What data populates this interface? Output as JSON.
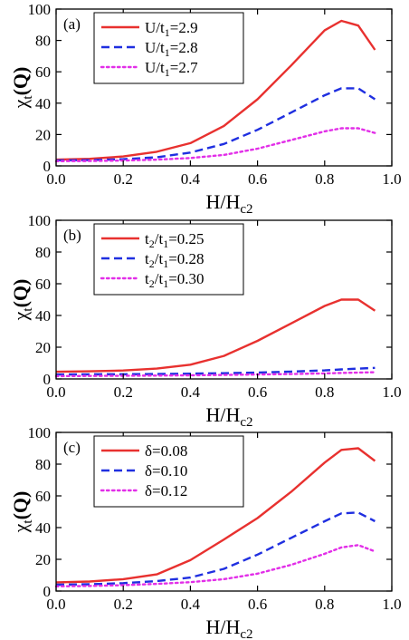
{
  "chart_data": [
    {
      "type": "line",
      "panel_label": "(a)",
      "xlabel": {
        "main": "H/H",
        "sub": "c2"
      },
      "ylabel": {
        "base": "χ",
        "sub": "t",
        "arg": "(Q)"
      },
      "xlim": [
        0,
        1.0
      ],
      "ylim": [
        0,
        100
      ],
      "xticks": [
        "0.0",
        "0.2",
        "0.4",
        "0.6",
        "0.8",
        "1.0"
      ],
      "yticks": [
        "0",
        "20",
        "40",
        "60",
        "80",
        "100"
      ],
      "legend_position": "top-left",
      "series": [
        {
          "name": "U/t1=2.9",
          "legend": {
            "a": "U/t",
            "sub": "1",
            "b": "=2.9"
          },
          "color": "#e8312f",
          "style": "solid",
          "x": [
            0.0,
            0.1,
            0.2,
            0.3,
            0.4,
            0.5,
            0.6,
            0.7,
            0.8,
            0.85,
            0.9,
            0.95
          ],
          "y": [
            4,
            4.5,
            6,
            9,
            14.5,
            25.5,
            42.5,
            64,
            86.5,
            92.5,
            89.5,
            74
          ]
        },
        {
          "name": "U/t1=2.8",
          "legend": {
            "a": "U/t",
            "sub": "1",
            "b": "=2.8"
          },
          "color": "#1f2fe0",
          "style": "dashed",
          "x": [
            0.0,
            0.1,
            0.2,
            0.3,
            0.4,
            0.5,
            0.6,
            0.7,
            0.8,
            0.85,
            0.9,
            0.95
          ],
          "y": [
            3.5,
            3.7,
            4.3,
            5.5,
            8.5,
            14,
            23,
            34,
            45,
            49.5,
            49.5,
            42.5
          ]
        },
        {
          "name": "U/t1=2.7",
          "legend": {
            "a": "U/t",
            "sub": "1",
            "b": "=2.7"
          },
          "color": "#e22ee8",
          "style": "dotted",
          "x": [
            0.0,
            0.1,
            0.2,
            0.3,
            0.4,
            0.5,
            0.6,
            0.7,
            0.8,
            0.85,
            0.9,
            0.95
          ],
          "y": [
            3,
            3.1,
            3.4,
            4,
            5,
            7,
            11,
            16.5,
            22,
            24,
            24,
            21
          ]
        }
      ]
    },
    {
      "type": "line",
      "panel_label": "(b)",
      "xlabel": {
        "main": "H/H",
        "sub": "c2"
      },
      "ylabel": {
        "base": "χ",
        "sub": "t",
        "arg": "(Q)"
      },
      "xlim": [
        0,
        1.0
      ],
      "ylim": [
        0,
        100
      ],
      "xticks": [
        "0.0",
        "0.2",
        "0.4",
        "0.6",
        "0.8",
        "1.0"
      ],
      "yticks": [
        "0",
        "20",
        "40",
        "60",
        "80",
        "100"
      ],
      "legend_position": "top-left",
      "series": [
        {
          "name": "t2/t1=0.25",
          "legend": {
            "a": "t",
            "sub": "2",
            "b": "/t",
            "sub2": "1",
            "c": "=0.25"
          },
          "color": "#e8312f",
          "style": "solid",
          "x": [
            0.0,
            0.1,
            0.2,
            0.3,
            0.4,
            0.5,
            0.6,
            0.7,
            0.8,
            0.85,
            0.9,
            0.95
          ],
          "y": [
            4.5,
            4.8,
            5.3,
            6.5,
            9,
            14.5,
            24,
            35,
            46,
            50,
            50,
            43
          ]
        },
        {
          "name": "t2/t1=0.28",
          "legend": {
            "a": "t",
            "sub": "2",
            "b": "/t",
            "sub2": "1",
            "c": "=0.28"
          },
          "color": "#1f2fe0",
          "style": "dashed",
          "x": [
            0.0,
            0.1,
            0.2,
            0.3,
            0.4,
            0.5,
            0.6,
            0.7,
            0.8,
            0.85,
            0.9,
            0.95
          ],
          "y": [
            2.8,
            2.9,
            3,
            3.1,
            3.3,
            3.6,
            4,
            4.6,
            5.4,
            6,
            6.5,
            7
          ]
        },
        {
          "name": "t2/t1=0.30",
          "legend": {
            "a": "t",
            "sub": "2",
            "b": "/t",
            "sub2": "1",
            "c": "=0.30"
          },
          "color": "#e22ee8",
          "style": "dotted",
          "x": [
            0.0,
            0.1,
            0.2,
            0.3,
            0.4,
            0.5,
            0.6,
            0.7,
            0.8,
            0.85,
            0.9,
            0.95
          ],
          "y": [
            1.8,
            1.9,
            2,
            2.1,
            2.3,
            2.5,
            2.8,
            3.1,
            3.5,
            3.8,
            4,
            4.2
          ]
        }
      ]
    },
    {
      "type": "line",
      "panel_label": "(c)",
      "xlabel": {
        "main": "H/H",
        "sub": "c2"
      },
      "ylabel": {
        "base": "χ",
        "sub": "t",
        "arg": "(Q)"
      },
      "xlim": [
        0,
        1.0
      ],
      "ylim": [
        0,
        100
      ],
      "xticks": [
        "0.0",
        "0.2",
        "0.4",
        "0.6",
        "0.8",
        "1.0"
      ],
      "yticks": [
        "0",
        "20",
        "40",
        "60",
        "80",
        "100"
      ],
      "legend_position": "top-left",
      "series": [
        {
          "name": "δ=0.08",
          "legend": {
            "a": "δ=0.08"
          },
          "color": "#e8312f",
          "style": "solid",
          "x": [
            0.0,
            0.1,
            0.2,
            0.3,
            0.4,
            0.5,
            0.6,
            0.7,
            0.8,
            0.85,
            0.9,
            0.95
          ],
          "y": [
            5.5,
            6,
            7.5,
            10.5,
            19.5,
            32.5,
            46,
            62.5,
            81,
            89,
            90,
            82
          ]
        },
        {
          "name": "δ=0.10",
          "legend": {
            "a": "δ=0.10"
          },
          "color": "#1f2fe0",
          "style": "dashed",
          "x": [
            0.0,
            0.1,
            0.2,
            0.3,
            0.4,
            0.5,
            0.6,
            0.7,
            0.8,
            0.85,
            0.9,
            0.95
          ],
          "y": [
            4,
            4.3,
            5,
            6.3,
            8.5,
            14,
            23,
            33.5,
            44,
            49,
            49.5,
            44
          ]
        },
        {
          "name": "δ=0.12",
          "legend": {
            "a": "δ=0.12"
          },
          "color": "#e22ee8",
          "style": "dotted",
          "x": [
            0.0,
            0.1,
            0.2,
            0.3,
            0.4,
            0.5,
            0.6,
            0.7,
            0.8,
            0.85,
            0.9,
            0.95
          ],
          "y": [
            3,
            3.2,
            3.7,
            4.5,
            5.6,
            7.5,
            11,
            16.5,
            23.5,
            27.5,
            29,
            25
          ]
        }
      ]
    }
  ]
}
